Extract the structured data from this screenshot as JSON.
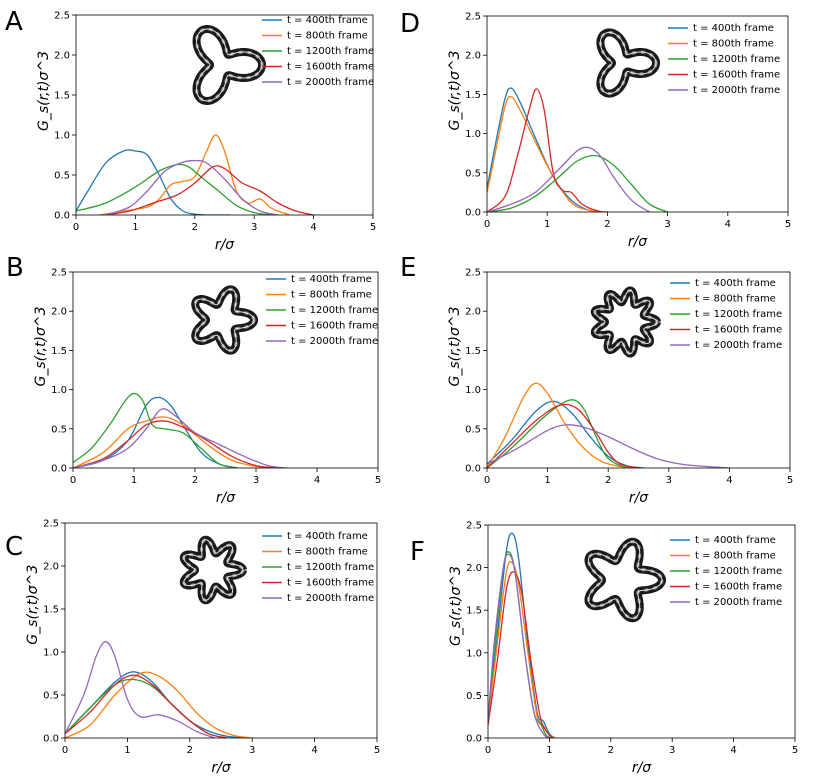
{
  "chart_data": [
    {
      "panel": "A",
      "type": "line",
      "xlabel": "r/σ",
      "ylabel": "G_s(r,t)σ^3",
      "xlim": [
        0,
        5
      ],
      "ylim": [
        0,
        2.5
      ],
      "xticks": [
        "0",
        "1",
        "2",
        "3",
        "4",
        "5"
      ],
      "yticks": [
        "0.0",
        "0.5",
        "1.0",
        "1.5",
        "2.0",
        "2.5"
      ],
      "legend_position": "top-right",
      "grid": false,
      "series": [
        {
          "name": "t = 400th frame",
          "color": "#1f77b4",
          "x": [
            0,
            0.2,
            0.5,
            0.8,
            1.0,
            1.2,
            1.4,
            1.6,
            1.8,
            2.0,
            2.2,
            2.6
          ],
          "y": [
            0.05,
            0.3,
            0.65,
            0.8,
            0.8,
            0.75,
            0.5,
            0.2,
            0.05,
            0.01,
            0.0,
            0.0
          ]
        },
        {
          "name": "t = 800th frame",
          "color": "#ff7f0e",
          "x": [
            0.4,
            0.8,
            1.2,
            1.4,
            1.6,
            1.8,
            2.0,
            2.2,
            2.35,
            2.5,
            2.7,
            2.9,
            3.1,
            3.3,
            3.6
          ],
          "y": [
            0.0,
            0.05,
            0.1,
            0.2,
            0.38,
            0.42,
            0.48,
            0.8,
            1.0,
            0.8,
            0.3,
            0.15,
            0.2,
            0.08,
            0.0
          ]
        },
        {
          "name": "t = 1200th frame",
          "color": "#2ca02c",
          "x": [
            0,
            0.5,
            1.0,
            1.4,
            1.7,
            1.9,
            2.1,
            2.4,
            2.7,
            3.0,
            3.3
          ],
          "y": [
            0.05,
            0.15,
            0.35,
            0.55,
            0.63,
            0.6,
            0.48,
            0.3,
            0.12,
            0.03,
            0.0
          ]
        },
        {
          "name": "t = 1600th frame",
          "color": "#d62728",
          "x": [
            0.5,
            0.9,
            1.3,
            1.7,
            2.0,
            2.3,
            2.5,
            2.8,
            3.1,
            3.4,
            3.7,
            4.0
          ],
          "y": [
            0.0,
            0.05,
            0.15,
            0.25,
            0.4,
            0.6,
            0.58,
            0.4,
            0.3,
            0.15,
            0.05,
            0.0
          ]
        },
        {
          "name": "t = 2000th frame",
          "color": "#9467bd",
          "x": [
            0.5,
            0.9,
            1.2,
            1.5,
            1.8,
            2.0,
            2.2,
            2.5,
            2.8,
            3.1,
            3.4
          ],
          "y": [
            0.0,
            0.1,
            0.3,
            0.55,
            0.66,
            0.68,
            0.65,
            0.45,
            0.2,
            0.05,
            0.0
          ]
        }
      ]
    },
    {
      "panel": "B",
      "type": "line",
      "xlabel": "r/σ",
      "ylabel": "G_s(r,t)σ^3",
      "xlim": [
        0,
        5
      ],
      "ylim": [
        0,
        2.5
      ],
      "xticks": [
        "0",
        "1",
        "2",
        "3",
        "4",
        "5"
      ],
      "yticks": [
        "0.0",
        "0.5",
        "1.0",
        "1.5",
        "2.0",
        "2.5"
      ],
      "legend_position": "top-right",
      "grid": false,
      "series": [
        {
          "name": "t = 400th frame",
          "color": "#1f77b4",
          "x": [
            0,
            0.5,
            0.9,
            1.2,
            1.4,
            1.6,
            1.8,
            2.1,
            2.4,
            2.7
          ],
          "y": [
            0.0,
            0.1,
            0.35,
            0.8,
            0.9,
            0.8,
            0.55,
            0.2,
            0.05,
            0.0
          ]
        },
        {
          "name": "t = 800th frame",
          "color": "#ff7f0e",
          "x": [
            0,
            0.5,
            0.9,
            1.2,
            1.5,
            1.8,
            2.2,
            2.6,
            3.0,
            3.3
          ],
          "y": [
            0.0,
            0.2,
            0.5,
            0.6,
            0.65,
            0.55,
            0.3,
            0.1,
            0.02,
            0.0
          ]
        },
        {
          "name": "t = 1200th frame",
          "color": "#2ca02c",
          "x": [
            0,
            0.3,
            0.6,
            0.85,
            1.0,
            1.15,
            1.3,
            1.5,
            1.8,
            2.1,
            2.4,
            2.7
          ],
          "y": [
            0.07,
            0.25,
            0.55,
            0.85,
            0.95,
            0.85,
            0.55,
            0.5,
            0.45,
            0.25,
            0.05,
            0.0
          ]
        },
        {
          "name": "t = 1600th frame",
          "color": "#d62728",
          "x": [
            0,
            0.5,
            0.9,
            1.2,
            1.5,
            1.8,
            2.2,
            2.6,
            3.0,
            3.4
          ],
          "y": [
            0.0,
            0.12,
            0.35,
            0.55,
            0.6,
            0.52,
            0.35,
            0.15,
            0.03,
            0.0
          ]
        },
        {
          "name": "t = 2000th frame",
          "color": "#9467bd",
          "x": [
            0,
            0.5,
            0.9,
            1.2,
            1.45,
            1.7,
            2.0,
            2.4,
            2.8,
            3.2,
            3.5
          ],
          "y": [
            0.0,
            0.1,
            0.25,
            0.5,
            0.75,
            0.65,
            0.45,
            0.3,
            0.15,
            0.03,
            0.0
          ]
        }
      ]
    },
    {
      "panel": "C",
      "type": "line",
      "xlabel": "r/σ",
      "ylabel": "G_s(r,t)σ^3",
      "xlim": [
        0,
        5
      ],
      "ylim": [
        0,
        2.5
      ],
      "xticks": [
        "0",
        "1",
        "2",
        "3",
        "4",
        "5"
      ],
      "yticks": [
        "0.0",
        "0.5",
        "1.0",
        "1.5",
        "2.0",
        "2.5"
      ],
      "legend_position": "top-right",
      "grid": false,
      "series": [
        {
          "name": "t = 400th frame",
          "color": "#1f77b4",
          "x": [
            0,
            0.4,
            0.8,
            1.1,
            1.4,
            1.7,
            2.0,
            2.3,
            2.6,
            2.9
          ],
          "y": [
            0.05,
            0.35,
            0.65,
            0.77,
            0.65,
            0.4,
            0.2,
            0.08,
            0.02,
            0.0
          ]
        },
        {
          "name": "t = 800th frame",
          "color": "#ff7f0e",
          "x": [
            0,
            0.4,
            0.8,
            1.2,
            1.5,
            1.8,
            2.1,
            2.4,
            2.7,
            3.0
          ],
          "y": [
            0.0,
            0.15,
            0.5,
            0.75,
            0.72,
            0.55,
            0.3,
            0.12,
            0.03,
            0.0
          ]
        },
        {
          "name": "t = 1200th frame",
          "color": "#2ca02c",
          "x": [
            0,
            0.4,
            0.8,
            1.1,
            1.4,
            1.7,
            2.0,
            2.3,
            2.6
          ],
          "y": [
            0.05,
            0.35,
            0.62,
            0.68,
            0.6,
            0.4,
            0.2,
            0.05,
            0.0
          ]
        },
        {
          "name": "t = 1600th frame",
          "color": "#d62728",
          "x": [
            0,
            0.4,
            0.8,
            1.1,
            1.4,
            1.7,
            2.0,
            2.3,
            2.6
          ],
          "y": [
            0.05,
            0.3,
            0.62,
            0.73,
            0.62,
            0.4,
            0.2,
            0.05,
            0.0
          ]
        },
        {
          "name": "t = 2000th frame",
          "color": "#9467bd",
          "x": [
            0,
            0.3,
            0.5,
            0.65,
            0.8,
            1.0,
            1.2,
            1.5,
            1.8,
            2.1,
            2.4
          ],
          "y": [
            0.05,
            0.5,
            0.95,
            1.12,
            0.95,
            0.45,
            0.25,
            0.27,
            0.2,
            0.08,
            0.0
          ]
        }
      ]
    },
    {
      "panel": "D",
      "type": "line",
      "xlabel": "r/σ",
      "ylabel": "G_s(r,t)σ^3",
      "xlim": [
        0,
        5
      ],
      "ylim": [
        0,
        2.5
      ],
      "xticks": [
        "0",
        "1",
        "2",
        "3",
        "4",
        "5"
      ],
      "yticks": [
        "0.0",
        "0.5",
        "1.0",
        "1.5",
        "2.0",
        "2.5"
      ],
      "legend_position": "top-right",
      "grid": false,
      "series": [
        {
          "name": "t = 400th frame",
          "color": "#1f77b4",
          "x": [
            0,
            0.15,
            0.3,
            0.4,
            0.55,
            0.8,
            1.1,
            1.4,
            1.7,
            2.0
          ],
          "y": [
            0.3,
            0.9,
            1.45,
            1.58,
            1.4,
            0.95,
            0.45,
            0.15,
            0.02,
            0.0
          ]
        },
        {
          "name": "t = 800th frame",
          "color": "#ff7f0e",
          "x": [
            0,
            0.15,
            0.3,
            0.4,
            0.55,
            0.8,
            1.1,
            1.4,
            1.7,
            2.0
          ],
          "y": [
            0.25,
            0.8,
            1.35,
            1.47,
            1.3,
            0.9,
            0.45,
            0.12,
            0.02,
            0.0
          ]
        },
        {
          "name": "t = 1200th frame",
          "color": "#2ca02c",
          "x": [
            0,
            0.4,
            0.8,
            1.2,
            1.5,
            1.8,
            2.1,
            2.4,
            2.7,
            3.0
          ],
          "y": [
            0.0,
            0.05,
            0.2,
            0.45,
            0.65,
            0.72,
            0.6,
            0.35,
            0.1,
            0.0
          ]
        },
        {
          "name": "t = 1600th frame",
          "color": "#d62728",
          "x": [
            0,
            0.3,
            0.5,
            0.7,
            0.82,
            0.95,
            1.1,
            1.25,
            1.4,
            1.55,
            1.7,
            1.9
          ],
          "y": [
            0.0,
            0.2,
            0.7,
            1.3,
            1.57,
            1.3,
            0.5,
            0.28,
            0.25,
            0.12,
            0.05,
            0.0
          ]
        },
        {
          "name": "t = 2000th frame",
          "color": "#9467bd",
          "x": [
            0,
            0.4,
            0.8,
            1.2,
            1.5,
            1.7,
            1.9,
            2.1,
            2.4,
            2.7
          ],
          "y": [
            0.0,
            0.1,
            0.25,
            0.55,
            0.78,
            0.82,
            0.7,
            0.45,
            0.15,
            0.0
          ]
        }
      ]
    },
    {
      "panel": "E",
      "type": "line",
      "xlabel": "r/σ",
      "ylabel": "G_s(r,t)σ^3",
      "xlim": [
        0,
        5
      ],
      "ylim": [
        0,
        2.5
      ],
      "xticks": [
        "0",
        "1",
        "2",
        "3",
        "4",
        "5"
      ],
      "yticks": [
        "0.0",
        "0.5",
        "1.0",
        "1.5",
        "2.0",
        "2.5"
      ],
      "legend_position": "top-right",
      "grid": false,
      "series": [
        {
          "name": "t = 400th frame",
          "color": "#1f77b4",
          "x": [
            0,
            0.4,
            0.8,
            1.1,
            1.4,
            1.7,
            2.0,
            2.3,
            2.6
          ],
          "y": [
            0.05,
            0.35,
            0.72,
            0.85,
            0.7,
            0.4,
            0.15,
            0.03,
            0.0
          ]
        },
        {
          "name": "t = 800th frame",
          "color": "#ff7f0e",
          "x": [
            0,
            0.3,
            0.6,
            0.8,
            1.0,
            1.3,
            1.6,
            1.9,
            2.2,
            2.5
          ],
          "y": [
            0.0,
            0.4,
            0.9,
            1.08,
            0.95,
            0.55,
            0.25,
            0.08,
            0.02,
            0.0
          ]
        },
        {
          "name": "t = 1200th frame",
          "color": "#2ca02c",
          "x": [
            0,
            0.4,
            0.8,
            1.1,
            1.4,
            1.6,
            1.8,
            2.0,
            2.3
          ],
          "y": [
            0.0,
            0.25,
            0.55,
            0.75,
            0.87,
            0.75,
            0.4,
            0.12,
            0.0
          ]
        },
        {
          "name": "t = 1600th frame",
          "color": "#d62728",
          "x": [
            0,
            0.4,
            0.8,
            1.2,
            1.5,
            1.8,
            2.0,
            2.2,
            2.5
          ],
          "y": [
            0.0,
            0.3,
            0.6,
            0.8,
            0.75,
            0.45,
            0.2,
            0.05,
            0.0
          ]
        },
        {
          "name": "t = 2000th frame",
          "color": "#9467bd",
          "x": [
            0,
            0.5,
            1.0,
            1.3,
            1.6,
            2.0,
            2.4,
            2.8,
            3.2,
            3.6,
            4.0
          ],
          "y": [
            0.05,
            0.25,
            0.48,
            0.55,
            0.52,
            0.4,
            0.25,
            0.12,
            0.05,
            0.02,
            0.0
          ]
        }
      ]
    },
    {
      "panel": "F",
      "type": "line",
      "xlabel": "r/σ",
      "ylabel": "G_s(r,t)σ^3",
      "xlim": [
        0,
        5
      ],
      "ylim": [
        0,
        2.5
      ],
      "xticks": [
        "0",
        "1",
        "2",
        "3",
        "4",
        "5"
      ],
      "yticks": [
        "0.0",
        "0.5",
        "1.0",
        "1.5",
        "2.0",
        "2.5"
      ],
      "legend_position": "top-right",
      "grid": false,
      "series": [
        {
          "name": "t = 400th frame",
          "color": "#1f77b4",
          "x": [
            0,
            0.15,
            0.3,
            0.4,
            0.5,
            0.65,
            0.8,
            0.9,
            1.0,
            1.1
          ],
          "y": [
            0.2,
            1.2,
            2.2,
            2.4,
            2.1,
            1.1,
            0.3,
            0.2,
            0.05,
            0.0
          ]
        },
        {
          "name": "t = 800th frame",
          "color": "#ff7f0e",
          "x": [
            0,
            0.15,
            0.3,
            0.4,
            0.5,
            0.65,
            0.8,
            0.9,
            1.0,
            1.1
          ],
          "y": [
            0.2,
            1.1,
            1.95,
            2.05,
            1.8,
            1.0,
            0.25,
            0.15,
            0.03,
            0.0
          ]
        },
        {
          "name": "t = 1200th frame",
          "color": "#2ca02c",
          "x": [
            0,
            0.1,
            0.25,
            0.35,
            0.45,
            0.6,
            0.75,
            0.85,
            0.95,
            1.05
          ],
          "y": [
            0.2,
            1.0,
            2.0,
            2.18,
            1.9,
            1.0,
            0.3,
            0.18,
            0.03,
            0.0
          ]
        },
        {
          "name": "t = 1600th frame",
          "color": "#d62728",
          "x": [
            0,
            0.15,
            0.3,
            0.42,
            0.55,
            0.7,
            0.85,
            0.95,
            1.05
          ],
          "y": [
            0.15,
            0.9,
            1.75,
            1.95,
            1.7,
            0.9,
            0.25,
            0.08,
            0.0
          ]
        },
        {
          "name": "t = 2000th frame",
          "color": "#9467bd",
          "x": [
            0,
            0.1,
            0.25,
            0.35,
            0.45,
            0.6,
            0.75,
            0.9,
            1.0
          ],
          "y": [
            0.2,
            1.1,
            2.0,
            2.15,
            1.9,
            1.0,
            0.3,
            0.05,
            0.0
          ]
        }
      ]
    }
  ]
}
